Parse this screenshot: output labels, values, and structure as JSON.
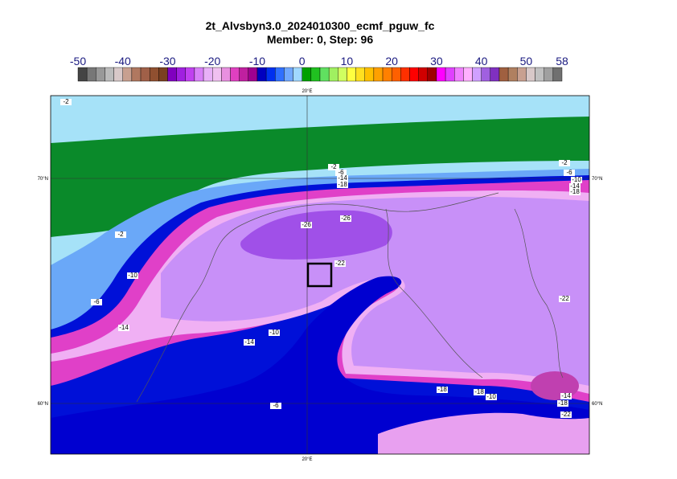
{
  "header": {
    "title": "2t_Alvsbyn3.0_2024010300_ecmf_pguw_fc",
    "subtitle": "Member: 0, Step: 96"
  },
  "colorbar": {
    "ticks": [
      -50,
      -40,
      -30,
      -20,
      -10,
      0,
      10,
      20,
      30,
      40,
      50,
      58
    ],
    "range": [
      -50,
      58
    ],
    "colors": [
      "#444444",
      "#777777",
      "#999999",
      "#bbbbbb",
      "#d8c8c8",
      "#c8a090",
      "#b07860",
      "#a06048",
      "#905030",
      "#7a4020",
      "#8000c0",
      "#a020e0",
      "#c040f0",
      "#d880f8",
      "#e8b0f8",
      "#f0c0f0",
      "#e890e0",
      "#e040c0",
      "#c020a0",
      "#a00090",
      "#0000c0",
      "#0030f0",
      "#3070ff",
      "#70a8ff",
      "#a0d8ff",
      "#00a000",
      "#20c020",
      "#60e060",
      "#a0f060",
      "#d0ff60",
      "#ffff40",
      "#ffe020",
      "#ffc000",
      "#ffa000",
      "#ff8000",
      "#ff6000",
      "#ff3000",
      "#ff0000",
      "#d00000",
      "#a00000",
      "#ff00ff",
      "#e040ff",
      "#f080ff",
      "#ffb0ff",
      "#d0a0ff",
      "#a060e0",
      "#8030c0",
      "#a06040",
      "#b08060",
      "#c8a090",
      "#d8c8c8",
      "#c0c0c0",
      "#a0a0a0",
      "#707070"
    ]
  },
  "map": {
    "lon_labels": [
      "20°E"
    ],
    "lat_labels": [
      "70°N",
      "60°N"
    ],
    "contour_labels": [
      -2,
      -2,
      -6,
      -14,
      -18,
      -2,
      -6,
      -10,
      -14,
      -18,
      -2,
      -10,
      -6,
      -14,
      -26,
      -26,
      -22,
      -22,
      -14,
      -10,
      -18,
      -18,
      -10,
      -14,
      -18,
      -22,
      -6
    ]
  }
}
